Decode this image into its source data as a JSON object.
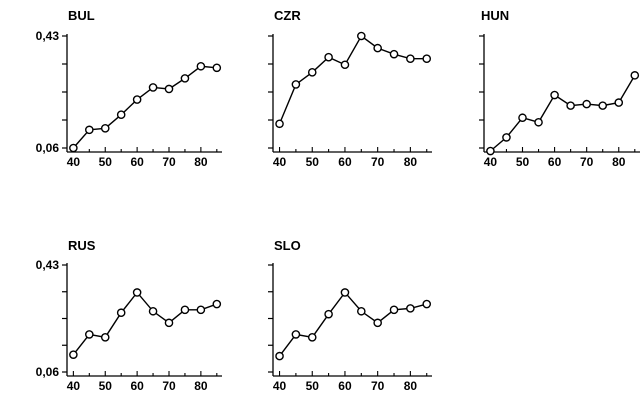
{
  "chart_data": [
    {
      "type": "line",
      "title": "BUL",
      "x": [
        40,
        45,
        50,
        55,
        60,
        65,
        70,
        75,
        80,
        85
      ],
      "values": [
        0.06,
        0.12,
        0.125,
        0.17,
        0.22,
        0.26,
        0.255,
        0.29,
        0.33,
        0.325
      ],
      "xticks": [
        "40",
        "50",
        "60",
        "70",
        "80"
      ],
      "yticks": [
        "0,06",
        "0,43"
      ],
      "xlim": [
        38,
        86
      ],
      "ylim": [
        0.06,
        0.43
      ]
    },
    {
      "type": "line",
      "title": "CZR",
      "x": [
        40,
        45,
        50,
        55,
        60,
        65,
        70,
        75,
        80,
        85
      ],
      "values": [
        0.14,
        0.27,
        0.31,
        0.36,
        0.335,
        0.43,
        0.39,
        0.37,
        0.355,
        0.355
      ],
      "xticks": [
        "40",
        "50",
        "60",
        "70",
        "80"
      ],
      "yticks": [],
      "xlim": [
        38,
        86
      ],
      "ylim": [
        0.06,
        0.43
      ]
    },
    {
      "type": "line",
      "title": "HUN",
      "x": [
        40,
        45,
        50,
        55,
        60,
        65,
        70,
        75,
        80,
        85
      ],
      "values": [
        0.05,
        0.095,
        0.16,
        0.145,
        0.235,
        0.2,
        0.205,
        0.2,
        0.21,
        0.3
      ],
      "xticks": [
        "40",
        "50",
        "60",
        "70",
        "80"
      ],
      "yticks": [],
      "xlim": [
        38,
        86
      ],
      "ylim": [
        0.06,
        0.43
      ]
    },
    {
      "type": "line",
      "title": "RUS",
      "x": [
        40,
        45,
        50,
        55,
        60,
        65,
        70,
        75,
        80,
        85
      ],
      "values": [
        0.12,
        0.19,
        0.18,
        0.265,
        0.335,
        0.27,
        0.23,
        0.275,
        0.275,
        0.295
      ],
      "xticks": [
        "40",
        "50",
        "60",
        "70",
        "80"
      ],
      "yticks": [
        "0,06",
        "0,43"
      ],
      "xlim": [
        38,
        86
      ],
      "ylim": [
        0.06,
        0.43
      ]
    },
    {
      "type": "line",
      "title": "SLO",
      "x": [
        40,
        45,
        50,
        55,
        60,
        65,
        70,
        75,
        80,
        85
      ],
      "values": [
        0.115,
        0.19,
        0.18,
        0.26,
        0.335,
        0.27,
        0.23,
        0.275,
        0.28,
        0.295
      ],
      "xticks": [
        "40",
        "50",
        "60",
        "70",
        "80"
      ],
      "yticks": [],
      "xlim": [
        38,
        86
      ],
      "ylim": [
        0.06,
        0.43
      ]
    }
  ]
}
